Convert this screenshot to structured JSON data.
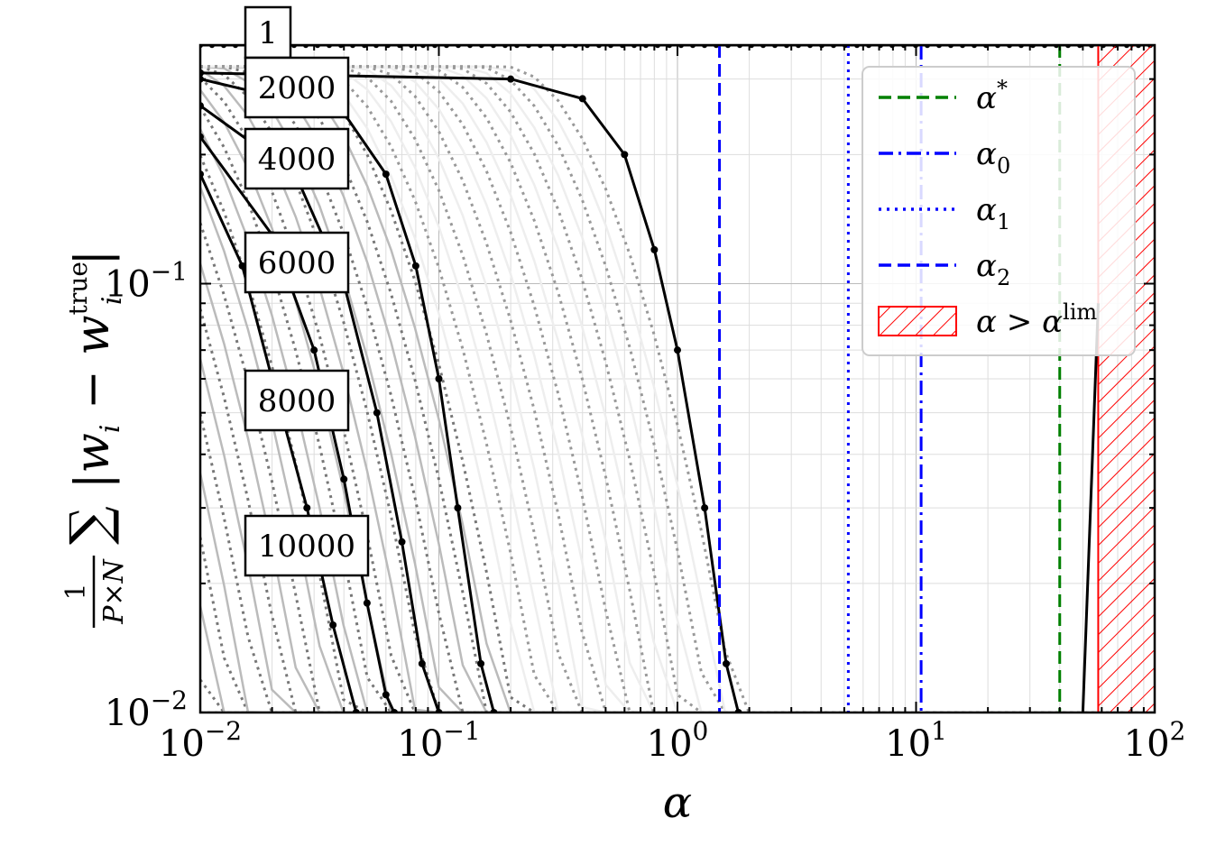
{
  "chart_data": {
    "type": "line",
    "xlabel": "α",
    "ylabel_parts": {
      "fraction_num": "1",
      "fraction_den": "P×N",
      "sigma": "∑",
      "body": "|w",
      "sub_i": "i",
      "minus": " − w",
      "sup": "true",
      "close": "|"
    },
    "xscale": "log",
    "yscale": "log",
    "xlim": [
      0.01,
      100
    ],
    "ylim": [
      0.01,
      0.36
    ],
    "grid": true,
    "x_ticks": [
      {
        "value": 0.01,
        "base": "10",
        "exp": "−2"
      },
      {
        "value": 0.1,
        "base": "10",
        "exp": "−1"
      },
      {
        "value": 1,
        "base": "10",
        "exp": "0"
      },
      {
        "value": 10,
        "base": "10",
        "exp": "1"
      },
      {
        "value": 100,
        "base": "10",
        "exp": "2"
      }
    ],
    "y_ticks": [
      {
        "value": 0.01,
        "base": "10",
        "exp": "−2"
      },
      {
        "value": 0.1,
        "base": "10",
        "exp": "−1"
      }
    ],
    "annotations": [
      "1",
      "2000",
      "4000",
      "6000",
      "8000",
      "10000"
    ],
    "series": [
      {
        "name": "1",
        "style": "solid-markers",
        "points": [
          [
            0.01,
            0.36
          ],
          [
            100,
            0.36
          ]
        ]
      },
      {
        "name": "2000",
        "style": "solid-markers",
        "points": [
          [
            0.01,
            0.31
          ],
          [
            0.2,
            0.3
          ],
          [
            0.4,
            0.27
          ],
          [
            0.6,
            0.2
          ],
          [
            0.8,
            0.12
          ],
          [
            1.0,
            0.07
          ],
          [
            1.3,
            0.03
          ],
          [
            1.6,
            0.013
          ],
          [
            1.8,
            0.01
          ]
        ]
      },
      {
        "name": "4000",
        "style": "solid-markers",
        "points": [
          [
            0.01,
            0.3
          ],
          [
            0.04,
            0.25
          ],
          [
            0.06,
            0.18
          ],
          [
            0.08,
            0.11
          ],
          [
            0.1,
            0.06
          ],
          [
            0.12,
            0.03
          ],
          [
            0.15,
            0.013
          ],
          [
            0.17,
            0.01
          ]
        ]
      },
      {
        "name": "6000",
        "style": "solid-markers",
        "points": [
          [
            0.01,
            0.26
          ],
          [
            0.025,
            0.18
          ],
          [
            0.04,
            0.1
          ],
          [
            0.055,
            0.05
          ],
          [
            0.07,
            0.025
          ],
          [
            0.085,
            0.013
          ],
          [
            0.1,
            0.01
          ]
        ]
      },
      {
        "name": "8000",
        "style": "solid-markers",
        "points": [
          [
            0.01,
            0.22
          ],
          [
            0.02,
            0.13
          ],
          [
            0.03,
            0.07
          ],
          [
            0.04,
            0.035
          ],
          [
            0.05,
            0.018
          ],
          [
            0.06,
            0.011
          ],
          [
            0.065,
            0.01
          ]
        ]
      },
      {
        "name": "10000",
        "style": "solid-markers",
        "points": [
          [
            0.01,
            0.18
          ],
          [
            0.015,
            0.11
          ],
          [
            0.02,
            0.06
          ],
          [
            0.028,
            0.03
          ],
          [
            0.036,
            0.016
          ],
          [
            0.045,
            0.01
          ]
        ]
      }
    ],
    "vlines": [
      {
        "label": "α*",
        "x": 40,
        "color": "#008000",
        "dash": "dashed"
      },
      {
        "label": "α0",
        "x": 10.5,
        "color": "#0000ff",
        "dash": "dashdot"
      },
      {
        "label": "α1",
        "x": 5.2,
        "color": "#0000ff",
        "dash": "dotted"
      },
      {
        "label": "α2",
        "x": 1.5,
        "color": "#0000ff",
        "dash": "dashed"
      }
    ],
    "region": {
      "label": "α > αlim",
      "x_from": 58,
      "x_to": 100,
      "color": "#ff0000"
    },
    "legend": {
      "placement": "top-right",
      "entries": [
        {
          "main": "α",
          "script": "*",
          "script_type": "sup",
          "color": "#008000",
          "dash": "dashed"
        },
        {
          "main": "α",
          "script": "0",
          "script_type": "sub",
          "color": "#0000ff",
          "dash": "dashdot"
        },
        {
          "main": "α",
          "script": "1",
          "script_type": "sub",
          "color": "#0000ff",
          "dash": "dotted"
        },
        {
          "main": "α",
          "script": "2",
          "script_type": "sub",
          "color": "#0000ff",
          "dash": "dashed"
        },
        {
          "main": "α > α",
          "script": "lim",
          "script_type": "sup",
          "color": "#ff0000",
          "dash": "hatch"
        }
      ]
    }
  }
}
